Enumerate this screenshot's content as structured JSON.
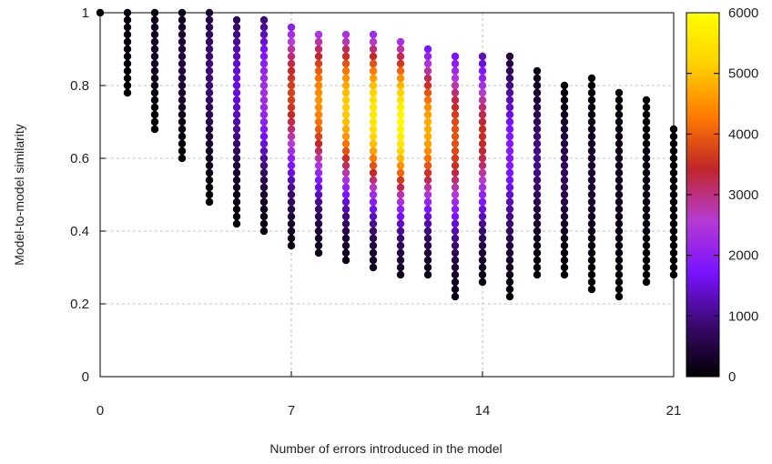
{
  "chart_data": {
    "type": "scatter",
    "title": "",
    "xlabel": "Number of errors introduced in the model",
    "ylabel": "Model-to-model similarity",
    "xlim": [
      0,
      21
    ],
    "ylim": [
      0,
      1
    ],
    "x_ticks": [
      "0",
      "7",
      "14",
      "21"
    ],
    "y_ticks": [
      "0",
      "0.2",
      "0.4",
      "0.6",
      "0.8",
      "1"
    ],
    "grid": true,
    "colorbar": {
      "range": [
        0,
        6000
      ],
      "ticks": [
        "0",
        "1000",
        "2000",
        "3000",
        "4000",
        "5000",
        "6000"
      ],
      "colormap": [
        "#000000",
        "#3a0a6e",
        "#7a12ff",
        "#b53bd4",
        "#c0262a",
        "#ff7a00",
        "#ffd000",
        "#ffff00"
      ]
    },
    "columns": [
      {
        "x": 0,
        "ymin": 1.0,
        "ymax": 1.0,
        "peak_y": 1.0,
        "peak_count": 0
      },
      {
        "x": 1,
        "ymin": 0.78,
        "ymax": 1.0,
        "peak_y": 0.95,
        "peak_count": 150
      },
      {
        "x": 2,
        "ymin": 0.68,
        "ymax": 1.0,
        "peak_y": 0.9,
        "peak_count": 300
      },
      {
        "x": 3,
        "ymin": 0.6,
        "ymax": 1.0,
        "peak_y": 0.86,
        "peak_count": 500
      },
      {
        "x": 4,
        "ymin": 0.48,
        "ymax": 1.0,
        "peak_y": 0.84,
        "peak_count": 900
      },
      {
        "x": 5,
        "ymin": 0.42,
        "ymax": 0.98,
        "peak_y": 0.8,
        "peak_count": 1500
      },
      {
        "x": 6,
        "ymin": 0.4,
        "ymax": 0.98,
        "peak_y": 0.78,
        "peak_count": 2300
      },
      {
        "x": 7,
        "ymin": 0.36,
        "ymax": 0.96,
        "peak_y": 0.78,
        "peak_count": 3700
      },
      {
        "x": 8,
        "ymin": 0.34,
        "ymax": 0.94,
        "peak_y": 0.76,
        "peak_count": 4500
      },
      {
        "x": 9,
        "ymin": 0.32,
        "ymax": 0.94,
        "peak_y": 0.74,
        "peak_count": 5100
      },
      {
        "x": 10,
        "ymin": 0.3,
        "ymax": 0.94,
        "peak_y": 0.72,
        "peak_count": 5600
      },
      {
        "x": 11,
        "ymin": 0.28,
        "ymax": 0.92,
        "peak_y": 0.7,
        "peak_count": 5900
      },
      {
        "x": 12,
        "ymin": 0.28,
        "ymax": 0.9,
        "peak_y": 0.68,
        "peak_count": 4800
      },
      {
        "x": 13,
        "ymin": 0.22,
        "ymax": 0.88,
        "peak_y": 0.66,
        "peak_count": 3900
      },
      {
        "x": 14,
        "ymin": 0.26,
        "ymax": 0.88,
        "peak_y": 0.66,
        "peak_count": 3500
      },
      {
        "x": 15,
        "ymin": 0.22,
        "ymax": 0.88,
        "peak_y": 0.62,
        "peak_count": 1900
      },
      {
        "x": 16,
        "ymin": 0.28,
        "ymax": 0.84,
        "peak_y": 0.6,
        "peak_count": 1000
      },
      {
        "x": 17,
        "ymin": 0.28,
        "ymax": 0.8,
        "peak_y": 0.56,
        "peak_count": 700
      },
      {
        "x": 18,
        "ymin": 0.24,
        "ymax": 0.82,
        "peak_y": 0.54,
        "peak_count": 400
      },
      {
        "x": 19,
        "ymin": 0.22,
        "ymax": 0.78,
        "peak_y": 0.52,
        "peak_count": 250
      },
      {
        "x": 20,
        "ymin": 0.26,
        "ymax": 0.76,
        "peak_y": 0.5,
        "peak_count": 150
      },
      {
        "x": 21,
        "ymin": 0.28,
        "ymax": 0.68,
        "peak_y": 0.48,
        "peak_count": 60
      }
    ]
  }
}
